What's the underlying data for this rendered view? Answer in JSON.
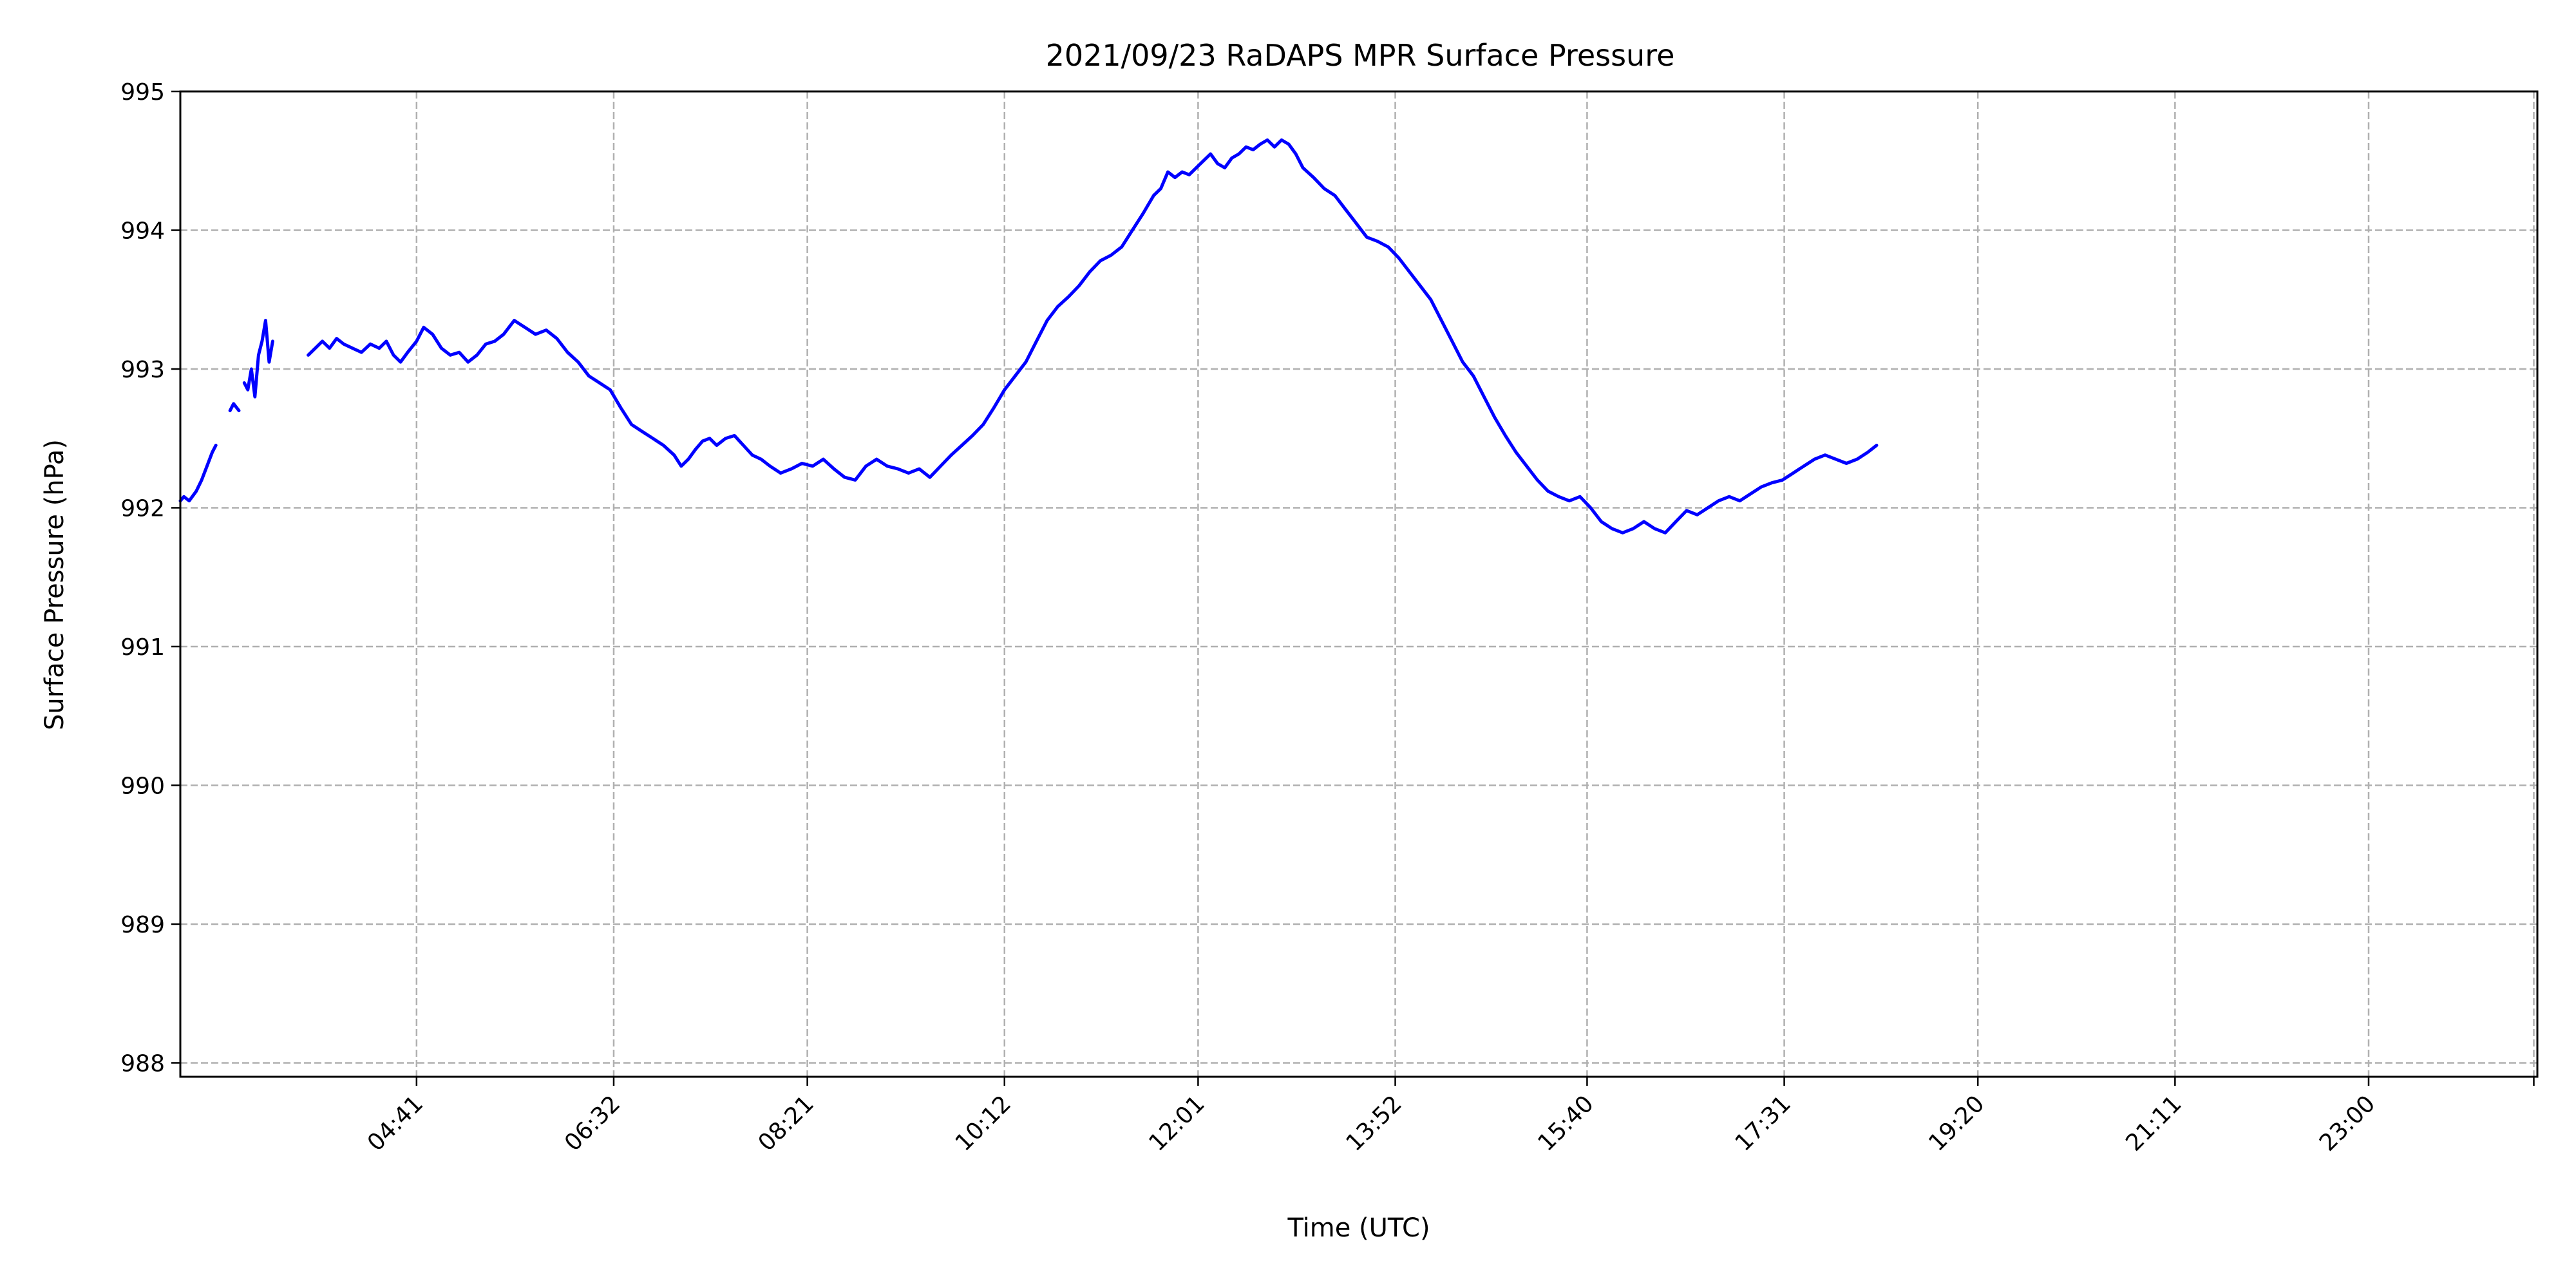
{
  "chart_data": {
    "type": "line",
    "title": "2021/09/23 RaDAPS MPR Surface Pressure",
    "xlabel": "Time (UTC)",
    "ylabel": "Surface Pressure (hPa)",
    "x_unit": "minutes",
    "xlim": [
      148,
      1475
    ],
    "ylim": [
      987.9,
      995.0
    ],
    "yticks": [
      988,
      989,
      990,
      991,
      992,
      993,
      994,
      995
    ],
    "xticks": [
      {
        "value": 281,
        "label": "04:41"
      },
      {
        "value": 392,
        "label": "06:32"
      },
      {
        "value": 501,
        "label": "08:21"
      },
      {
        "value": 612,
        "label": "10:12"
      },
      {
        "value": 721,
        "label": "12:01"
      },
      {
        "value": 832,
        "label": "13:52"
      },
      {
        "value": 940,
        "label": "15:40"
      },
      {
        "value": 1051,
        "label": "17:31"
      },
      {
        "value": 1160,
        "label": "19:20"
      },
      {
        "value": 1271,
        "label": "21:11"
      },
      {
        "value": 1380,
        "label": "23:00"
      },
      {
        "value": 1473,
        "label": ""
      }
    ],
    "grid": true,
    "line_color": "#0000ff",
    "series": [
      {
        "segments": [
          [
            [
              148,
              992.05
            ],
            [
              150,
              992.08
            ],
            [
              153,
              992.05
            ],
            [
              157,
              992.12
            ],
            [
              160,
              992.2
            ],
            [
              163,
              992.3
            ],
            [
              166,
              992.4
            ],
            [
              168,
              992.45
            ]
          ],
          [
            [
              176,
              992.7
            ],
            [
              178,
              992.75
            ],
            [
              181,
              992.7
            ]
          ],
          [
            [
              184,
              992.9
            ],
            [
              186,
              992.85
            ],
            [
              188,
              993.0
            ],
            [
              190,
              992.8
            ],
            [
              192,
              993.1
            ],
            [
              194,
              993.2
            ],
            [
              196,
              993.35
            ],
            [
              198,
              993.05
            ],
            [
              200,
              993.2
            ]
          ],
          [
            [
              220,
              993.1
            ],
            [
              224,
              993.15
            ],
            [
              228,
              993.2
            ],
            [
              232,
              993.15
            ],
            [
              236,
              993.22
            ],
            [
              240,
              993.18
            ],
            [
              245,
              993.15
            ],
            [
              250,
              993.12
            ],
            [
              255,
              993.18
            ],
            [
              260,
              993.15
            ],
            [
              264,
              993.2
            ],
            [
              268,
              993.1
            ],
            [
              272,
              993.05
            ],
            [
              276,
              993.12
            ],
            [
              281,
              993.2
            ],
            [
              285,
              993.3
            ],
            [
              290,
              993.25
            ],
            [
              295,
              993.15
            ],
            [
              300,
              993.1
            ],
            [
              305,
              993.12
            ],
            [
              310,
              993.05
            ],
            [
              315,
              993.1
            ],
            [
              320,
              993.18
            ],
            [
              325,
              993.2
            ],
            [
              330,
              993.25
            ],
            [
              336,
              993.35
            ],
            [
              342,
              993.3
            ],
            [
              348,
              993.25
            ],
            [
              354,
              993.28
            ],
            [
              360,
              993.22
            ],
            [
              366,
              993.12
            ],
            [
              372,
              993.05
            ],
            [
              378,
              992.95
            ],
            [
              384,
              992.9
            ],
            [
              390,
              992.85
            ],
            [
              396,
              992.72
            ],
            [
              402,
              992.6
            ],
            [
              408,
              992.55
            ],
            [
              414,
              992.5
            ],
            [
              420,
              992.45
            ],
            [
              426,
              992.38
            ],
            [
              430,
              992.3
            ],
            [
              434,
              992.35
            ],
            [
              438,
              992.42
            ],
            [
              442,
              992.48
            ],
            [
              446,
              992.5
            ],
            [
              450,
              992.45
            ],
            [
              455,
              992.5
            ],
            [
              460,
              992.52
            ],
            [
              465,
              992.45
            ],
            [
              470,
              992.38
            ],
            [
              475,
              992.35
            ],
            [
              480,
              992.3
            ],
            [
              486,
              992.25
            ],
            [
              492,
              992.28
            ],
            [
              498,
              992.32
            ],
            [
              504,
              992.3
            ],
            [
              510,
              992.35
            ],
            [
              516,
              992.28
            ],
            [
              522,
              992.22
            ],
            [
              528,
              992.2
            ],
            [
              534,
              992.3
            ],
            [
              540,
              992.35
            ],
            [
              546,
              992.3
            ],
            [
              552,
              992.28
            ],
            [
              558,
              992.25
            ],
            [
              564,
              992.28
            ],
            [
              570,
              992.22
            ],
            [
              576,
              992.3
            ],
            [
              582,
              992.38
            ],
            [
              588,
              992.45
            ],
            [
              594,
              992.52
            ],
            [
              600,
              992.6
            ],
            [
              606,
              992.72
            ],
            [
              612,
              992.85
            ],
            [
              618,
              992.95
            ],
            [
              624,
              993.05
            ],
            [
              630,
              993.2
            ],
            [
              636,
              993.35
            ],
            [
              642,
              993.45
            ],
            [
              648,
              993.52
            ],
            [
              654,
              993.6
            ],
            [
              660,
              993.7
            ],
            [
              666,
              993.78
            ],
            [
              672,
              993.82
            ],
            [
              678,
              993.88
            ],
            [
              684,
              994.0
            ],
            [
              690,
              994.12
            ],
            [
              696,
              994.25
            ],
            [
              700,
              994.3
            ],
            [
              704,
              994.42
            ],
            [
              708,
              994.38
            ],
            [
              712,
              994.42
            ],
            [
              716,
              994.4
            ],
            [
              720,
              994.45
            ],
            [
              724,
              994.5
            ],
            [
              728,
              994.55
            ],
            [
              732,
              994.48
            ],
            [
              736,
              994.45
            ],
            [
              740,
              994.52
            ],
            [
              744,
              994.55
            ],
            [
              748,
              994.6
            ],
            [
              752,
              994.58
            ],
            [
              756,
              994.62
            ],
            [
              760,
              994.65
            ],
            [
              764,
              994.6
            ],
            [
              768,
              994.65
            ],
            [
              772,
              994.62
            ],
            [
              776,
              994.55
            ],
            [
              780,
              994.45
            ],
            [
              786,
              994.38
            ],
            [
              792,
              994.3
            ],
            [
              798,
              994.25
            ],
            [
              804,
              994.15
            ],
            [
              810,
              994.05
            ],
            [
              816,
              993.95
            ],
            [
              822,
              993.92
            ],
            [
              828,
              993.88
            ],
            [
              834,
              993.8
            ],
            [
              840,
              993.7
            ],
            [
              846,
              993.6
            ],
            [
              852,
              993.5
            ],
            [
              858,
              993.35
            ],
            [
              864,
              993.2
            ],
            [
              870,
              993.05
            ],
            [
              876,
              992.95
            ],
            [
              882,
              992.8
            ],
            [
              888,
              992.65
            ],
            [
              894,
              992.52
            ],
            [
              900,
              992.4
            ],
            [
              906,
              992.3
            ],
            [
              912,
              992.2
            ],
            [
              918,
              992.12
            ],
            [
              924,
              992.08
            ],
            [
              930,
              992.05
            ],
            [
              936,
              992.08
            ],
            [
              942,
              992.0
            ],
            [
              948,
              991.9
            ],
            [
              954,
              991.85
            ],
            [
              960,
              991.82
            ],
            [
              966,
              991.85
            ],
            [
              972,
              991.9
            ],
            [
              978,
              991.85
            ],
            [
              984,
              991.82
            ],
            [
              990,
              991.9
            ],
            [
              996,
              991.98
            ],
            [
              1002,
              991.95
            ],
            [
              1008,
              992.0
            ],
            [
              1014,
              992.05
            ],
            [
              1020,
              992.08
            ],
            [
              1026,
              992.05
            ],
            [
              1032,
              992.1
            ],
            [
              1038,
              992.15
            ],
            [
              1044,
              992.18
            ],
            [
              1050,
              992.2
            ],
            [
              1056,
              992.25
            ],
            [
              1062,
              992.3
            ],
            [
              1068,
              992.35
            ],
            [
              1074,
              992.38
            ],
            [
              1080,
              992.35
            ],
            [
              1086,
              992.32
            ],
            [
              1092,
              992.35
            ],
            [
              1098,
              992.4
            ],
            [
              1103,
              992.45
            ]
          ]
        ]
      }
    ]
  }
}
